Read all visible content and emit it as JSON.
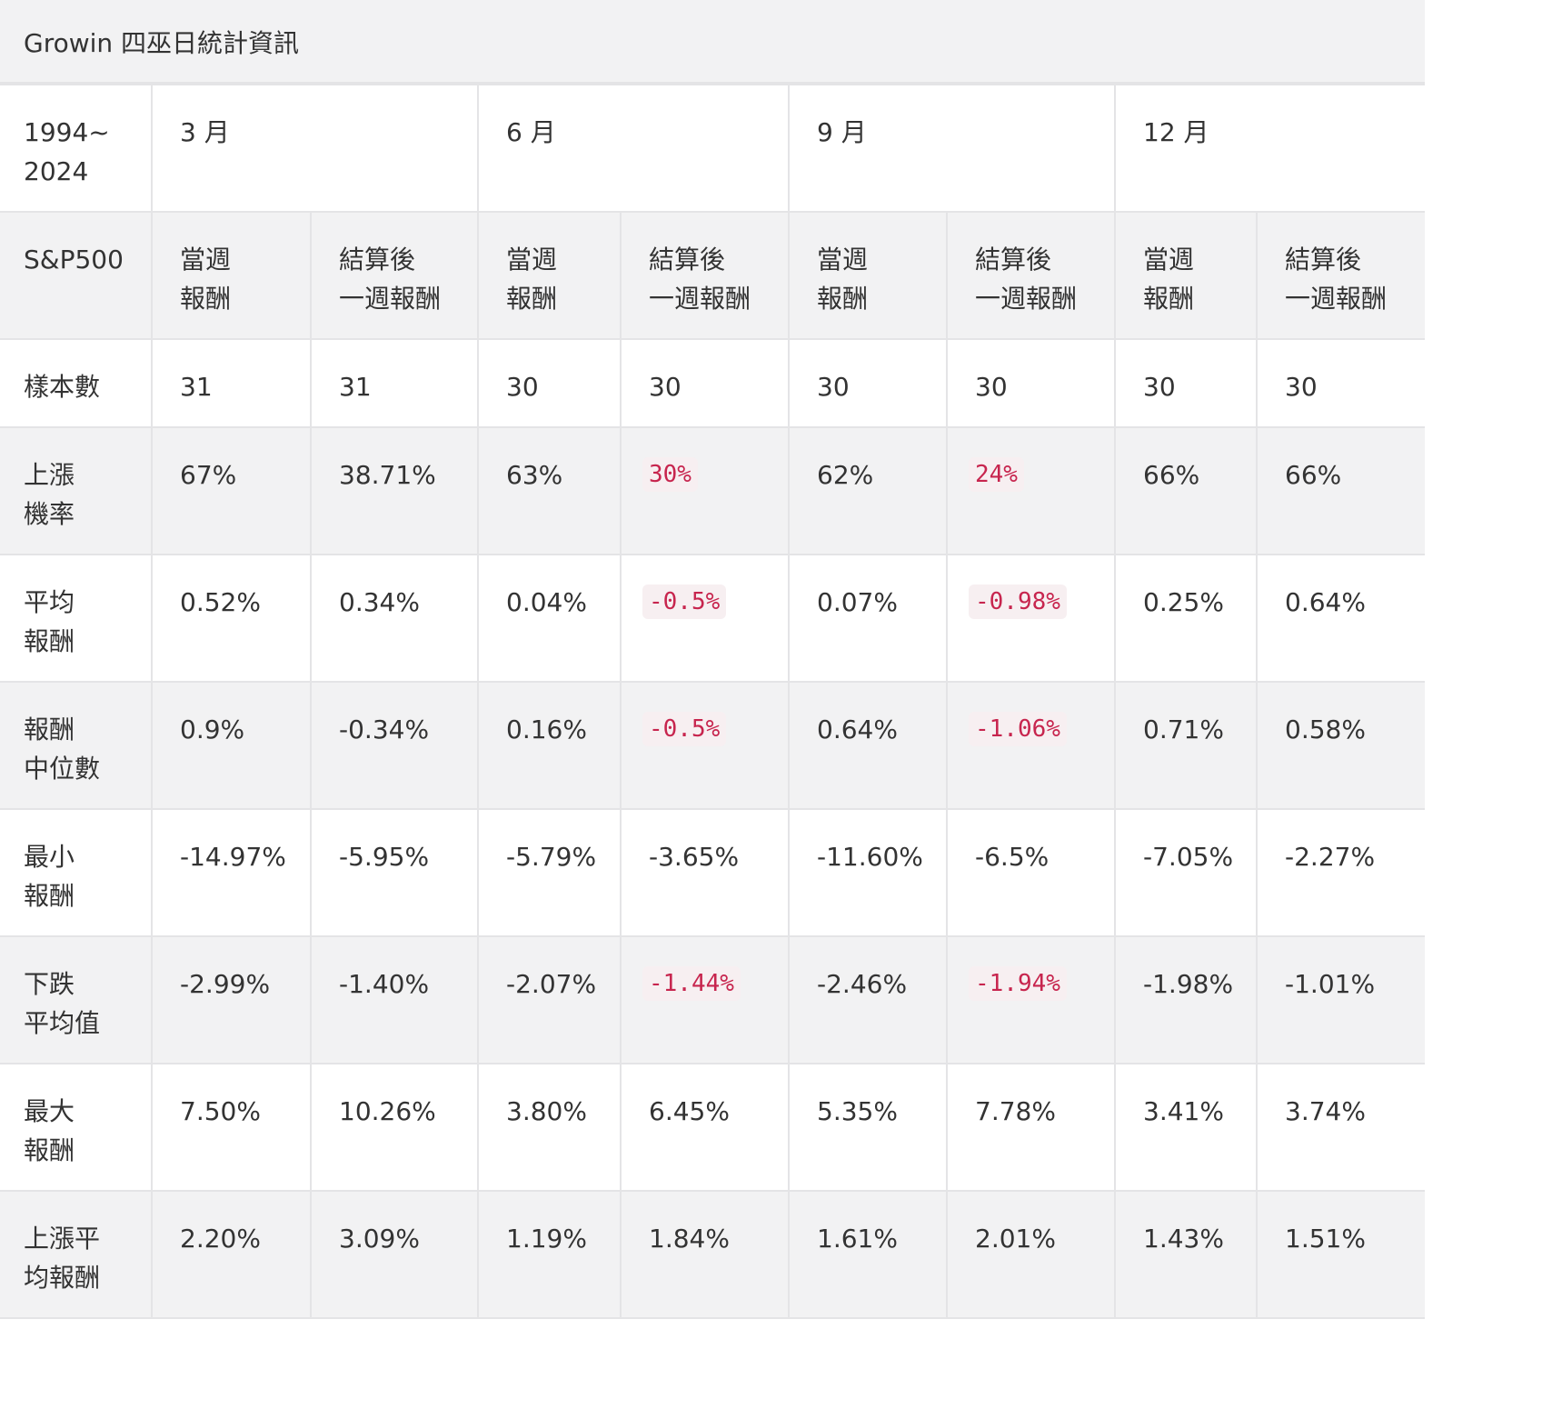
{
  "title": "Growin 四巫日統計資訊",
  "period_label": "1994~\n2024",
  "months": [
    "3 月",
    "6 月",
    "9 月",
    "12 月"
  ],
  "index_label": "S&P500",
  "sub_headers": [
    "當週\n報酬",
    "結算後\n一週報酬",
    "當週\n報酬",
    "結算後\n一週報酬",
    "當週\n報酬",
    "結算後\n一週報酬",
    "當週\n報酬",
    "結算後\n一週報酬"
  ],
  "rows": [
    {
      "label": "樣本數",
      "cells": [
        "31",
        "31",
        "30",
        "30",
        "30",
        "30",
        "30",
        "30"
      ],
      "highlight": [
        false,
        false,
        false,
        false,
        false,
        false,
        false,
        false
      ]
    },
    {
      "label": "上漲\n機率",
      "cells": [
        "67%",
        "38.71%",
        "63%",
        "30%",
        "62%",
        "24%",
        "66%",
        "66%"
      ],
      "highlight": [
        false,
        false,
        false,
        true,
        false,
        true,
        false,
        false
      ]
    },
    {
      "label": "平均\n報酬",
      "cells": [
        "0.52%",
        "0.34%",
        "0.04%",
        "-0.5%",
        "0.07%",
        "-0.98%",
        "0.25%",
        "0.64%"
      ],
      "highlight": [
        false,
        false,
        false,
        true,
        false,
        true,
        false,
        false
      ]
    },
    {
      "label": "報酬\n中位數",
      "cells": [
        "0.9%",
        "-0.34%",
        "0.16%",
        "-0.5%",
        "0.64%",
        "-1.06%",
        "0.71%",
        "0.58%"
      ],
      "highlight": [
        false,
        false,
        false,
        true,
        false,
        true,
        false,
        false
      ]
    },
    {
      "label": "最小\n報酬",
      "cells": [
        "-14.97%",
        "-5.95%",
        "-5.79%",
        "-3.65%",
        "-11.60%",
        "-6.5%",
        "-7.05%",
        "-2.27%"
      ],
      "highlight": [
        false,
        false,
        false,
        false,
        false,
        false,
        false,
        false
      ]
    },
    {
      "label": "下跌\n平均值",
      "cells": [
        "-2.99%",
        "-1.40%",
        "-2.07%",
        "-1.44%",
        "-2.46%",
        "-1.94%",
        "-1.98%",
        "-1.01%"
      ],
      "highlight": [
        false,
        false,
        false,
        true,
        false,
        true,
        false,
        false
      ]
    },
    {
      "label": "最大\n報酬",
      "cells": [
        "7.50%",
        "10.26%",
        "3.80%",
        "6.45%",
        "5.35%",
        "7.78%",
        "3.41%",
        "3.74%"
      ],
      "highlight": [
        false,
        false,
        false,
        false,
        false,
        false,
        false,
        false
      ]
    },
    {
      "label": "上漲平\n均報酬",
      "cells": [
        "2.20%",
        "3.09%",
        "1.19%",
        "1.84%",
        "1.61%",
        "2.01%",
        "1.43%",
        "1.51%"
      ],
      "highlight": [
        false,
        false,
        false,
        false,
        false,
        false,
        false,
        false
      ]
    }
  ],
  "colors": {
    "header_bg": "#f2f2f3",
    "border": "#e4e4e6",
    "highlight_text": "#c7254e",
    "highlight_bg": "#f7eff1"
  }
}
